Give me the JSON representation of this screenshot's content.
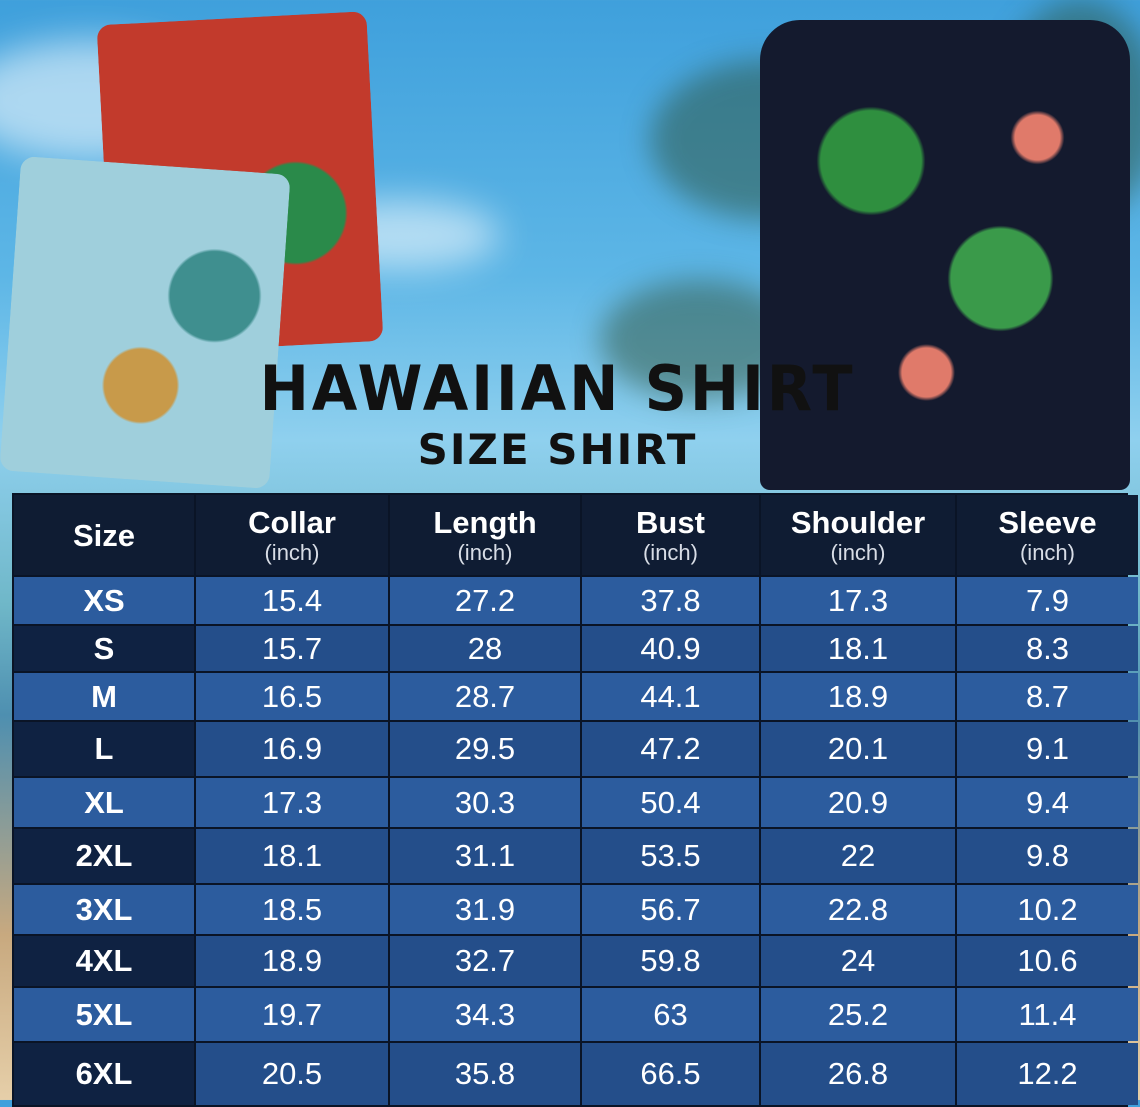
{
  "title": "HAWAIIAN SHIRT",
  "subtitle": "SIZE SHIRT",
  "colors": {
    "header_bg": "#0f1c33",
    "row_light": "#2c5c9e",
    "row_dark": "#244e8a",
    "text": "#ffffff"
  },
  "table": {
    "headers": [
      {
        "label": "Size",
        "unit": ""
      },
      {
        "label": "Collar",
        "unit": "(inch)"
      },
      {
        "label": "Length",
        "unit": "(inch)"
      },
      {
        "label": "Bust",
        "unit": "(inch)"
      },
      {
        "label": "Shoulder",
        "unit": "(inch)"
      },
      {
        "label": "Sleeve",
        "unit": "(inch)"
      }
    ],
    "rows": [
      [
        "XS",
        "15.4",
        "27.2",
        "37.8",
        "17.3",
        "7.9"
      ],
      [
        "S",
        "15.7",
        "28",
        "40.9",
        "18.1",
        "8.3"
      ],
      [
        "M",
        "16.5",
        "28.7",
        "44.1",
        "18.9",
        "8.7"
      ],
      [
        "L",
        "16.9",
        "29.5",
        "47.2",
        "20.1",
        "9.1"
      ],
      [
        "XL",
        "17.3",
        "30.3",
        "50.4",
        "20.9",
        "9.4"
      ],
      [
        "2XL",
        "18.1",
        "31.1",
        "53.5",
        "22",
        "9.8"
      ],
      [
        "3XL",
        "18.5",
        "31.9",
        "56.7",
        "22.8",
        "10.2"
      ],
      [
        "4XL",
        "18.9",
        "32.7",
        "59.8",
        "24",
        "10.6"
      ],
      [
        "5XL",
        "19.7",
        "34.3",
        "63",
        "25.2",
        "11.4"
      ],
      [
        "6XL",
        "20.5",
        "35.8",
        "66.5",
        "26.8",
        "12.2"
      ]
    ]
  }
}
